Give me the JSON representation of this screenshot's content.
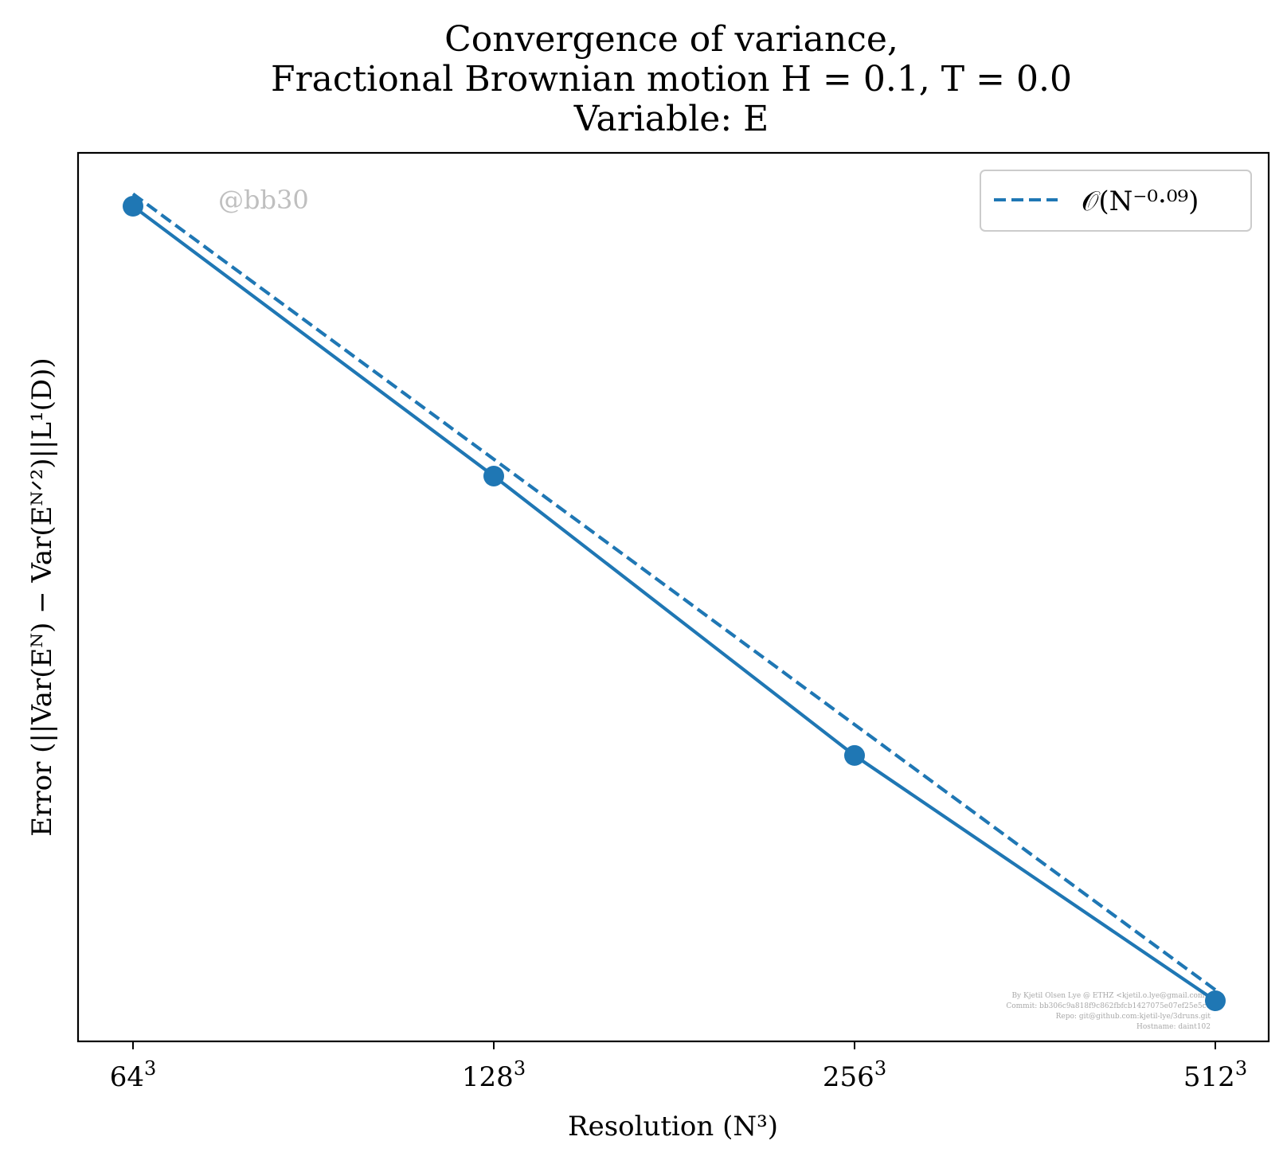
{
  "chart_data": {
    "type": "line",
    "title": [
      "Convergence of variance,",
      "Fractional Brownian motion H = 0.1, T = 0.0",
      "Variable: E"
    ],
    "xlabel": "Resolution (N³)",
    "ylabel": "Error (||Var(Eᴺ) − Var(Eᴺᐟ²)||L¹(D))",
    "x_scale": "log2",
    "y_scale": "log",
    "y_ticks_shown": false,
    "x_ticks": [
      {
        "base": "64",
        "exp": "3",
        "value": 64
      },
      {
        "base": "128",
        "exp": "3",
        "value": 128
      },
      {
        "base": "256",
        "exp": "3",
        "value": 256
      },
      {
        "base": "512",
        "exp": "3",
        "value": 512
      }
    ],
    "series": [
      {
        "style": "solid-with-markers",
        "color": "#1f77b4",
        "x": [
          64,
          128,
          256,
          512
        ],
        "y_relative": [
          1.0,
          0.9407,
          0.8793,
          0.8254
        ]
      },
      {
        "name": "𝒪(N⁻⁰·⁰⁹)",
        "style": "dashed",
        "color": "#1f77b4",
        "x": [
          64,
          512
        ],
        "y_relative": [
          1.0027,
          0.8278
        ]
      }
    ],
    "legend": {
      "position": "top-right",
      "label": "𝒪(N⁻⁰·⁰⁹)"
    },
    "grid": false
  },
  "watermark": "@bb30",
  "credits": [
    "By Kjetil Olsen Lye @ ETHZ <kjetil.o.lye@gmail.com>",
    "Commit: bb306c9a818f9c862fbfcb1427075e07ef25e5ce",
    "Repo: git@github.com:kjetil-lye/3druns.git",
    "Hostname: daint102"
  ]
}
